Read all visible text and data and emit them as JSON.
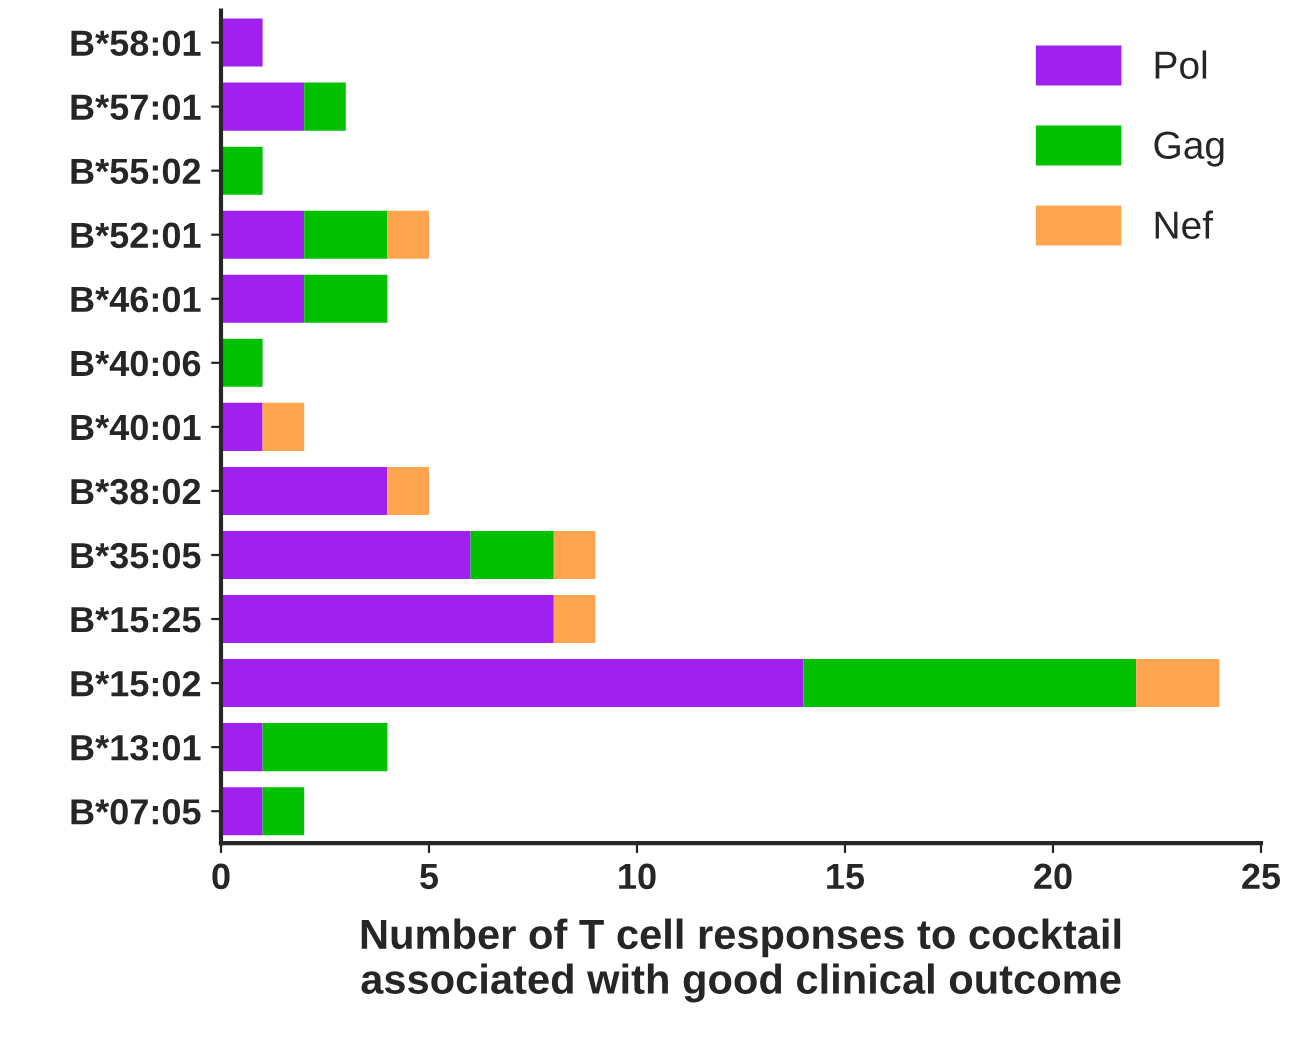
{
  "chart_data": {
    "type": "bar",
    "orientation": "horizontal",
    "stacked": true,
    "xlabel": "Number of T cell responses to cocktail\nassociated with good clinical outcome",
    "categories": [
      "B*58:01",
      "B*57:01",
      "B*55:02",
      "B*52:01",
      "B*46:01",
      "B*40:06",
      "B*40:01",
      "B*38:02",
      "B*35:05",
      "B*15:25",
      "B*15:02",
      "B*13:01",
      "B*07:05"
    ],
    "series": [
      {
        "name": "Pol",
        "color": "#a020f0",
        "values": [
          1,
          2,
          0,
          2,
          2,
          0,
          1,
          4,
          6,
          8,
          14,
          1,
          1
        ]
      },
      {
        "name": "Gag",
        "color": "#00c000",
        "values": [
          0,
          1,
          1,
          2,
          2,
          1,
          0,
          0,
          2,
          0,
          8,
          3,
          1
        ]
      },
      {
        "name": "Nef",
        "color": "#ffa54f",
        "values": [
          0,
          0,
          0,
          1,
          0,
          0,
          1,
          1,
          1,
          1,
          2,
          0,
          0
        ]
      }
    ],
    "xlim": [
      0,
      25
    ],
    "xticks": [
      0,
      5,
      10,
      15,
      20,
      25
    ],
    "grid": false,
    "legend": "top right"
  }
}
